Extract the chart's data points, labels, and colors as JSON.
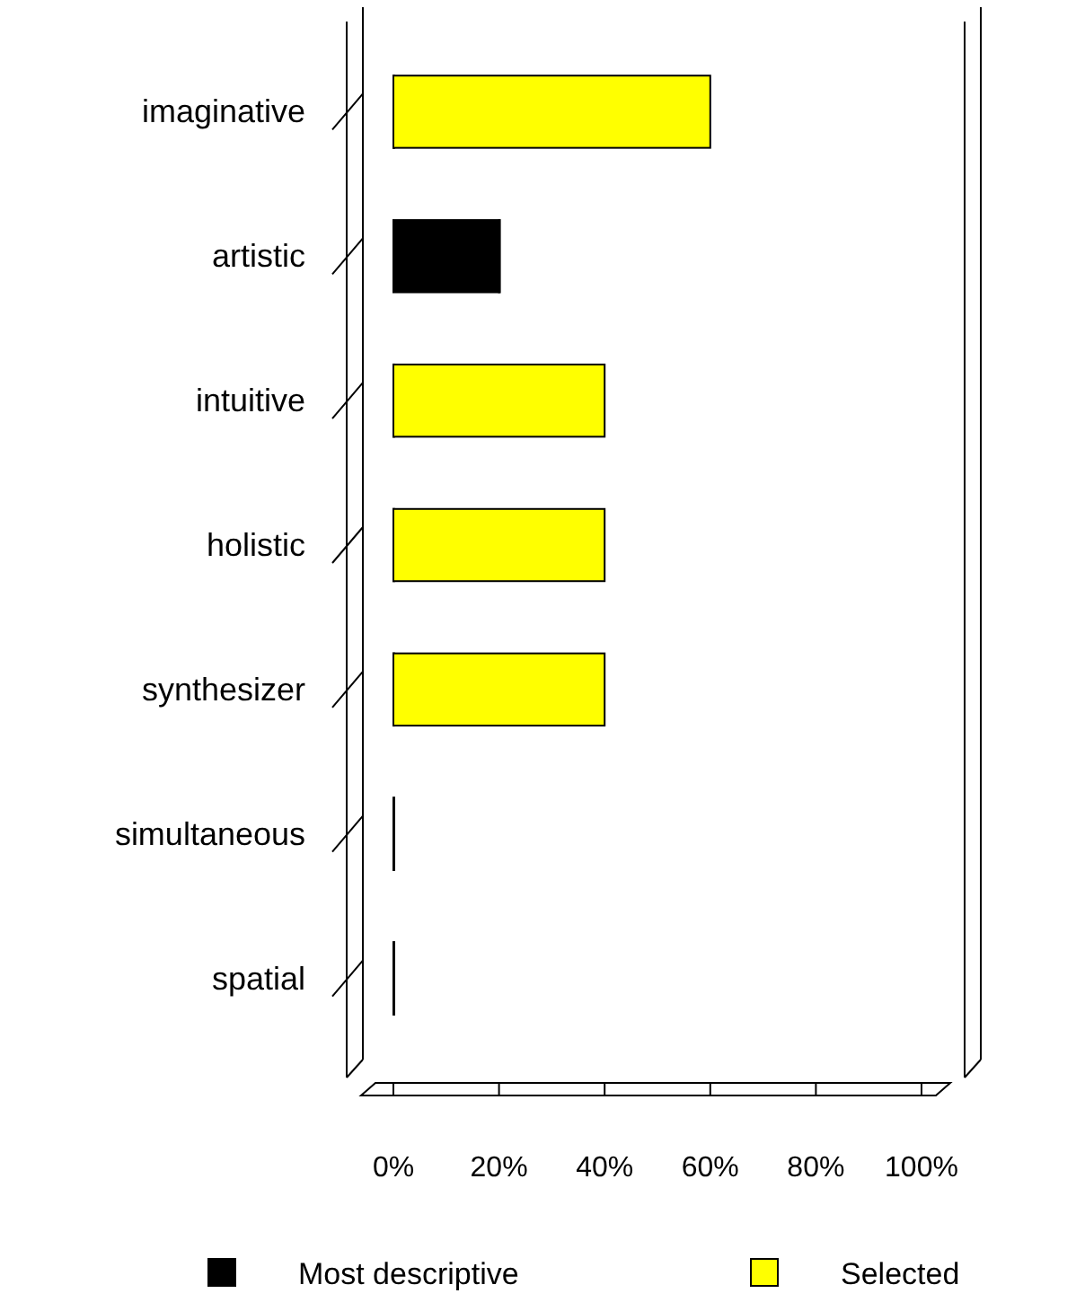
{
  "chart_data": {
    "type": "bar",
    "orientation": "horizontal",
    "stacked": true,
    "categories": [
      "imaginative",
      "artistic",
      "intuitive",
      "holistic",
      "synthesizer",
      "simultaneous",
      "spatial"
    ],
    "series": [
      {
        "name": "Most descriptive",
        "color": "#000000",
        "values": [
          0,
          20,
          0,
          0,
          0,
          0,
          0
        ]
      },
      {
        "name": "Selected",
        "color": "#ffff00",
        "values": [
          60,
          0,
          40,
          40,
          40,
          0,
          0
        ]
      }
    ],
    "xlim": [
      0,
      100
    ],
    "xticks": [
      {
        "value": 0,
        "label": "0%"
      },
      {
        "value": 20,
        "label": "20%"
      },
      {
        "value": 40,
        "label": "40%"
      },
      {
        "value": 60,
        "label": "60%"
      },
      {
        "value": 80,
        "label": "80%"
      },
      {
        "value": 100,
        "label": "100%"
      }
    ],
    "grid": false,
    "legend": "bottom"
  }
}
